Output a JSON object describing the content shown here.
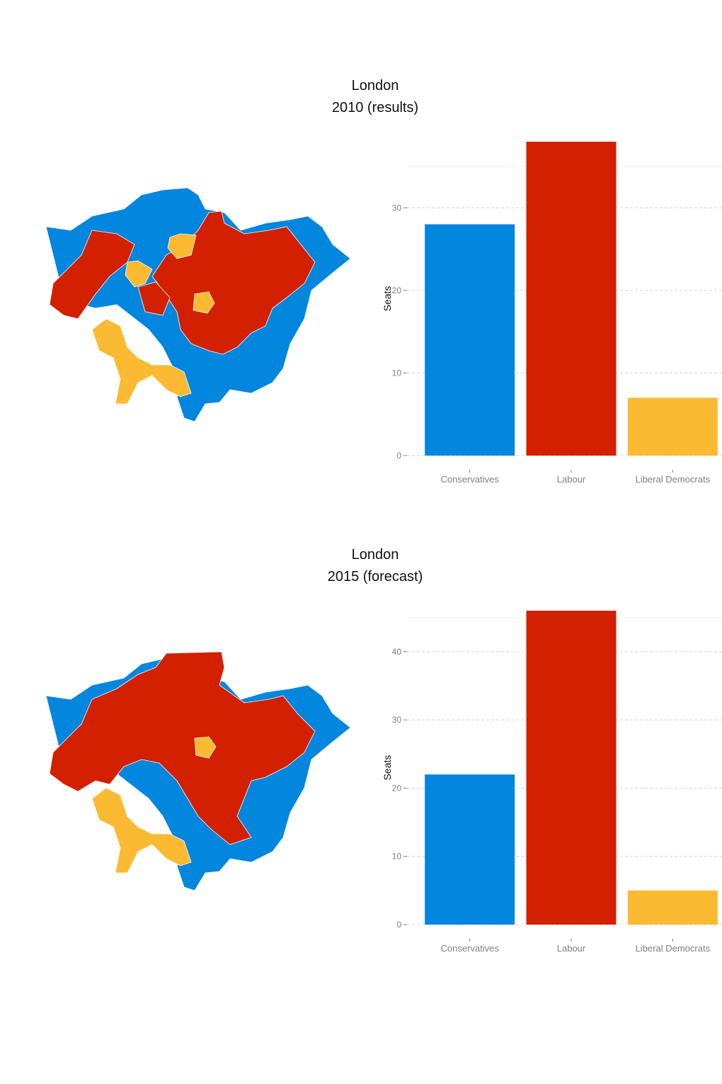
{
  "colors": {
    "conservatives": "#0386DD",
    "labour": "#D22000",
    "liberal_democrats": "#FBBA32",
    "grid": "#d3d3d3",
    "tick_text": "#7f7f7f"
  },
  "panels": [
    {
      "title_line1": "London",
      "title_line2": "2010 (results)"
    },
    {
      "title_line1": "London",
      "title_line2": "2015 (forecast)"
    }
  ],
  "chart_data": [
    {
      "type": "bar",
      "title": "London 2010 (results)",
      "categories": [
        "Conservatives",
        "Labour",
        "Liberal Democrats"
      ],
      "values": [
        28,
        38,
        7
      ],
      "xlabel": "",
      "ylabel": "Seats",
      "yticks": [
        0,
        10,
        20,
        30
      ],
      "ylim": [
        0,
        38
      ],
      "grid": true,
      "colors": [
        "#0386DD",
        "#D22000",
        "#FBBA32"
      ]
    },
    {
      "type": "bar",
      "title": "London 2015 (forecast)",
      "categories": [
        "Conservatives",
        "Labour",
        "Liberal Democrats"
      ],
      "values": [
        22,
        46,
        5
      ],
      "xlabel": "",
      "ylabel": "Seats",
      "yticks": [
        0,
        10,
        20,
        30,
        40
      ],
      "ylim": [
        0,
        46
      ],
      "grid": true,
      "colors": [
        "#0386DD",
        "#D22000",
        "#FBBA32"
      ]
    }
  ],
  "maps": [
    {
      "region": "London",
      "party_colors": [
        "conservatives",
        "labour",
        "liberal_democrats"
      ]
    },
    {
      "region": "London",
      "party_colors": [
        "conservatives",
        "labour",
        "liberal_democrats"
      ]
    }
  ]
}
